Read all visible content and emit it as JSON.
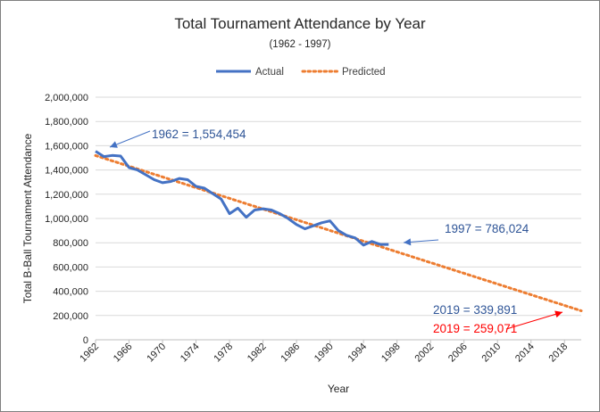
{
  "colors": {
    "actual": "#4472C4",
    "predicted": "#ED7D31",
    "annotation_blue": "#2F5597",
    "annotation_red": "#FF0000",
    "gridline": "#D9D9D9"
  },
  "chart_data": {
    "type": "line",
    "title": "Total Tournament Attendance by Year",
    "subtitle": "(1962 - 1997)",
    "xlabel": "Year",
    "ylabel": "Total B-Ball Tournament Attendance",
    "xlim": [
      1962,
      2020
    ],
    "ylim": [
      0,
      2000000
    ],
    "legend_position": "top",
    "grid": true,
    "x_ticks": [
      1962,
      1966,
      1970,
      1974,
      1978,
      1982,
      1986,
      1990,
      1994,
      1998,
      2002,
      2006,
      2010,
      2014,
      2018
    ],
    "y_ticks": [
      {
        "value": 0,
        "label": "0"
      },
      {
        "value": 200000,
        "label": "200,000"
      },
      {
        "value": 400000,
        "label": "400,000"
      },
      {
        "value": 600000,
        "label": "600,000"
      },
      {
        "value": 800000,
        "label": "800,000"
      },
      {
        "value": 1000000,
        "label": "1,000,000"
      },
      {
        "value": 1200000,
        "label": "1,200,000"
      },
      {
        "value": 1400000,
        "label": "1,400,000"
      },
      {
        "value": 1600000,
        "label": "1,600,000"
      },
      {
        "value": 1800000,
        "label": "1,800,000"
      },
      {
        "value": 2000000,
        "label": "2,000,000"
      }
    ],
    "series": [
      {
        "name": "Actual",
        "style": "solid",
        "x": [
          1962,
          1963,
          1964,
          1965,
          1966,
          1967,
          1968,
          1969,
          1970,
          1971,
          1972,
          1973,
          1974,
          1975,
          1976,
          1977,
          1978,
          1979,
          1980,
          1981,
          1982,
          1983,
          1984,
          1985,
          1986,
          1987,
          1988,
          1989,
          1990,
          1991,
          1992,
          1993,
          1994,
          1995,
          1996,
          1997
        ],
        "y": [
          1554454,
          1510000,
          1520000,
          1515000,
          1420000,
          1400000,
          1360000,
          1320000,
          1295000,
          1305000,
          1330000,
          1320000,
          1265000,
          1250000,
          1205000,
          1160000,
          1040000,
          1085000,
          1010000,
          1070000,
          1080000,
          1070000,
          1040000,
          1000000,
          950000,
          915000,
          940000,
          965000,
          980000,
          900000,
          860000,
          840000,
          780000,
          810000,
          786024,
          786024
        ]
      },
      {
        "name": "Predicted",
        "style": "dotted",
        "x": [
          1962,
          2020
        ],
        "y": [
          1519000,
          239000
        ]
      }
    ],
    "annotations": [
      {
        "text": "1962 = 1,554,454",
        "color": "annotation_blue",
        "target": {
          "x": 1962,
          "y": 1554454
        }
      },
      {
        "text": "1997 = 786,024",
        "color": "annotation_blue",
        "target": {
          "x": 1997,
          "y": 786024
        }
      },
      {
        "text": "2019 = 339,891",
        "color": "annotation_blue",
        "target": null
      },
      {
        "text": "2019 = 259,071",
        "color": "annotation_red",
        "target": {
          "x": 2019,
          "y": 259071
        }
      }
    ]
  }
}
